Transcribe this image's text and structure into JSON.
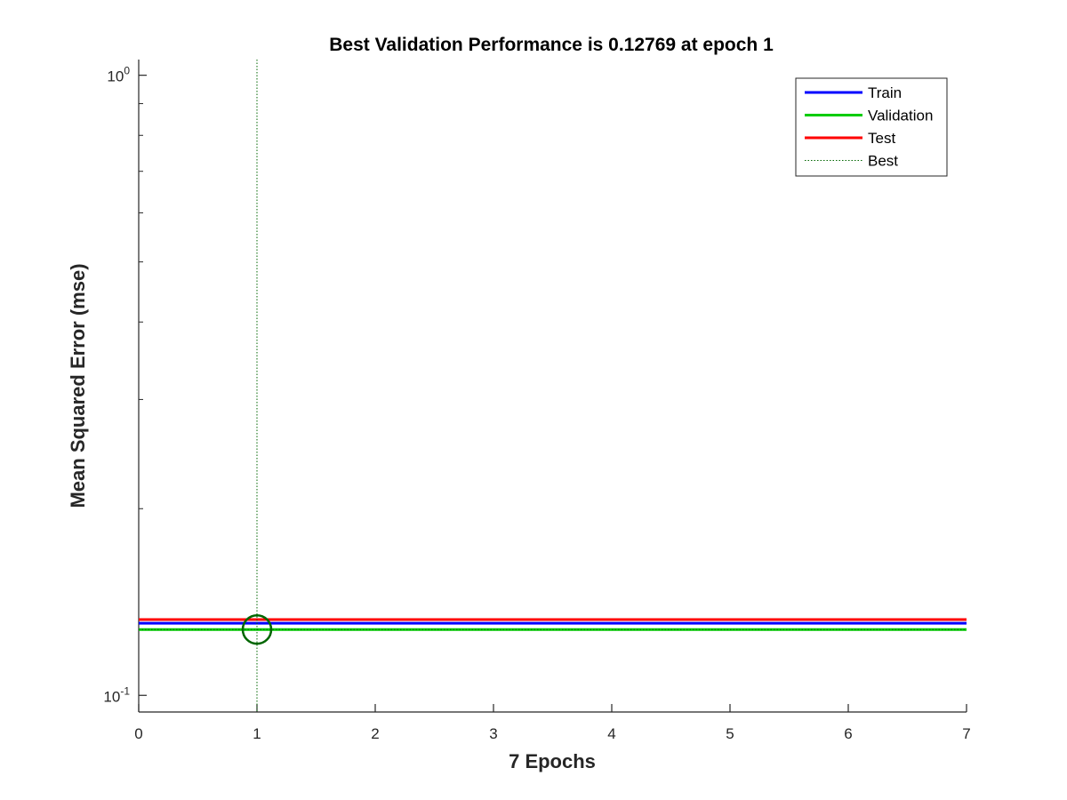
{
  "chart_data": {
    "type": "line",
    "title": "Best Validation Performance is 0.12769 at epoch 1",
    "xlabel": "7 Epochs",
    "ylabel": "Mean Squared Error  (mse)",
    "xlim": [
      0,
      7
    ],
    "ylim": [
      0.094,
      1.06
    ],
    "yscale": "log",
    "grid": false,
    "legend_position": "top-right",
    "x_ticks": [
      "0",
      "1",
      "2",
      "3",
      "4",
      "5",
      "6",
      "7"
    ],
    "y_ticks": [
      {
        "value": 0.1,
        "base": "10",
        "exp": "-1"
      },
      {
        "value": 1,
        "base": "10",
        "exp": "0"
      }
    ],
    "x": [
      0,
      1,
      2,
      3,
      4,
      5,
      6,
      7
    ],
    "series": [
      {
        "name": "Train",
        "color": "#0000ff",
        "values": [
          0.1307,
          0.1307,
          0.1307,
          0.1307,
          0.1307,
          0.1307,
          0.1307,
          0.1307
        ]
      },
      {
        "name": "Validation",
        "color": "#00cc00",
        "values": [
          0.12769,
          0.12769,
          0.12769,
          0.12769,
          0.12769,
          0.12769,
          0.12769,
          0.12769
        ]
      },
      {
        "name": "Test",
        "color": "#ff0000",
        "values": [
          0.1325,
          0.1325,
          0.1325,
          0.1325,
          0.1325,
          0.1325,
          0.1325,
          0.1325
        ]
      }
    ],
    "best": {
      "name": "Best",
      "color": "#006600",
      "epoch": 1,
      "value": 0.12769
    }
  }
}
